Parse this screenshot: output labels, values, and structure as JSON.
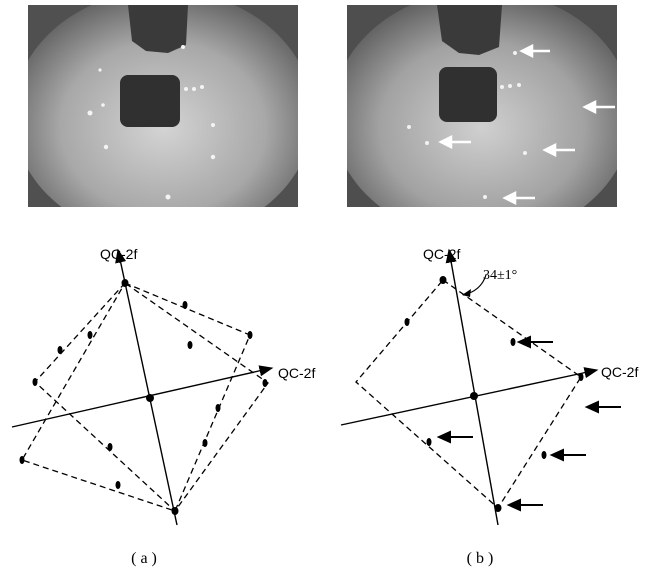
{
  "figure": {
    "panel_a": {
      "caption": "( a )",
      "axis_vertical_label": "QC-2f",
      "axis_horizontal_label": "QC-2f"
    },
    "panel_b": {
      "caption": "( b )",
      "axis_vertical_label": "QC-2f",
      "axis_horizontal_label": "QC-2f",
      "angle_annotation": "34±1°"
    }
  },
  "colors": {
    "background": "#ffffff",
    "ink": "#000000",
    "photo_bright": "#c8c8c8",
    "photo_dark": "#333333",
    "photo_arrow": "#ffffff"
  },
  "icons": {
    "photo_arrow": "left-pointing white arrow",
    "diagram_arrow": "left-pointing black arrow"
  }
}
